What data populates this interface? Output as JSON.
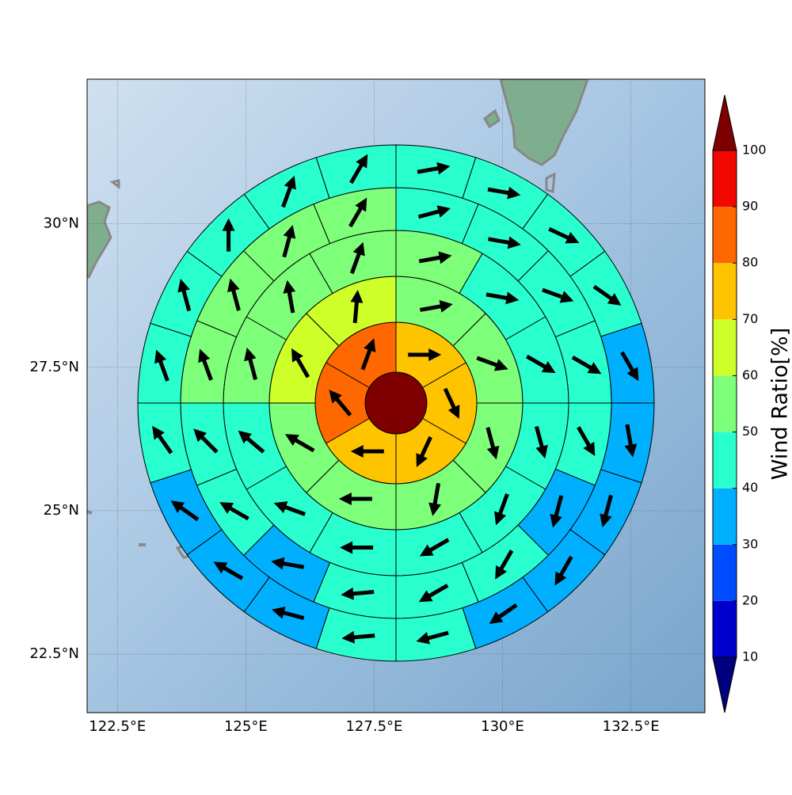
{
  "chart_data": {
    "type": "polar",
    "xlim": [
      121.91,
      133.94
    ],
    "ylim": [
      21.48,
      32.52
    ],
    "xticks": [
      {
        "value": 122.5,
        "label": "122.5°E"
      },
      {
        "value": 125,
        "label": "125°E"
      },
      {
        "value": 127.5,
        "label": "127.5°E"
      },
      {
        "value": 130,
        "label": "130°E"
      },
      {
        "value": 132.5,
        "label": "132.5°E"
      }
    ],
    "yticks": [
      {
        "value": 22.5,
        "label": "22.5°N"
      },
      {
        "value": 25,
        "label": "25°N"
      },
      {
        "value": 27.5,
        "label": "27.5°N"
      },
      {
        "value": 30,
        "label": "30°N"
      }
    ],
    "grid": true,
    "center_value": 100,
    "rings": [
      {
        "values": [
          75,
          75,
          75,
          75,
          85,
          85
        ],
        "directions": [
          90,
          155,
          205,
          270,
          320,
          20
        ]
      },
      {
        "values": [
          55,
          55,
          55,
          55,
          55,
          55,
          65,
          65
        ],
        "directions": [
          80,
          110,
          165,
          190,
          270,
          300,
          330,
          5
        ]
      },
      {
        "values": [
          55,
          45,
          45,
          45,
          45,
          45,
          45,
          45,
          45,
          55,
          55,
          55
        ],
        "directions": [
          80,
          100,
          120,
          165,
          200,
          240,
          270,
          290,
          310,
          345,
          350,
          20
        ]
      },
      {
        "values": [
          45,
          45,
          45,
          45,
          45,
          35,
          45,
          45,
          45,
          35,
          45,
          45,
          55,
          55,
          55,
          55
        ],
        "directions": [
          75,
          100,
          110,
          120,
          150,
          195,
          210,
          240,
          265,
          280,
          300,
          315,
          340,
          345,
          15,
          30
        ]
      },
      {
        "values": [
          45,
          45,
          45,
          45,
          35,
          35,
          35,
          35,
          35,
          45,
          45,
          35,
          35,
          35,
          45,
          45,
          45,
          45,
          45,
          45
        ],
        "directions": [
          80,
          100,
          115,
          125,
          150,
          170,
          195,
          210,
          235,
          255,
          265,
          285,
          300,
          305,
          325,
          340,
          345,
          0,
          20,
          30
        ]
      }
    ],
    "colorbar": {
      "label": "Wind Ratio[%]",
      "levels": [
        10,
        20,
        30,
        40,
        50,
        60,
        70,
        80,
        90,
        100
      ],
      "colors": [
        "#00007f",
        "#0000cd",
        "#004cff",
        "#00b0ff",
        "#29ffce",
        "#7dff7a",
        "#ceff29",
        "#ffc400",
        "#ff6800",
        "#f10800",
        "#7f0000"
      ],
      "extend": "both"
    }
  }
}
